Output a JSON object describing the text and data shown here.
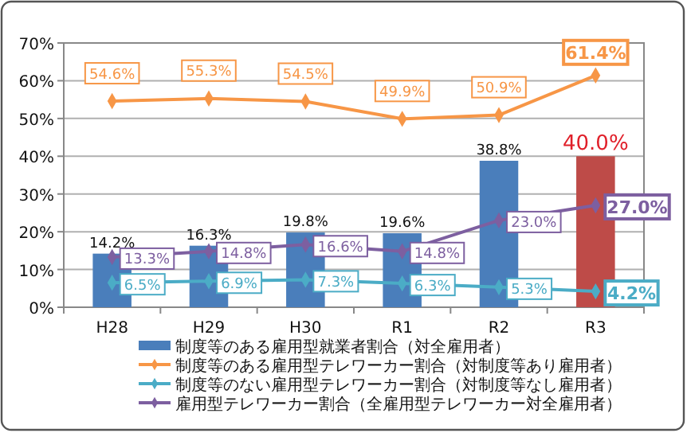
{
  "chart_data": {
    "type": "bar",
    "categories": [
      "H28",
      "H29",
      "H30",
      "R1",
      "R2",
      "R3"
    ],
    "series": [
      {
        "name": "制度等のある雇用型就業者割合（対全雇用者）",
        "color": "#4a7ebb",
        "colors": [
          "#4a7ebb",
          "#4a7ebb",
          "#4a7ebb",
          "#4a7ebb",
          "#4a7ebb",
          "#be4b48"
        ],
        "values": [
          14.2,
          16.3,
          19.8,
          19.6,
          38.8,
          40.0
        ],
        "value_labels": [
          "14.2%",
          "16.3%",
          "19.8%",
          "19.6%",
          "38.8%",
          "40.0%"
        ]
      },
      {
        "name": "制度等のある雇用型テレワーカー割合（対制度等あり雇用者）",
        "type": "line",
        "color": "#f79646",
        "values": [
          54.6,
          55.3,
          54.5,
          49.9,
          50.9,
          61.4
        ],
        "value_labels": [
          "54.6%",
          "55.3%",
          "54.5%",
          "49.9%",
          "50.9%",
          "61.4%"
        ]
      },
      {
        "name": "制度等のない雇用型テレワーカー割合（対制度等なし雇用者）",
        "type": "line",
        "color": "#4bacc6",
        "values": [
          6.5,
          6.9,
          7.3,
          6.3,
          5.3,
          4.2
        ],
        "value_labels": [
          "6.5%",
          "6.9%",
          "7.3%",
          "6.3%",
          "5.3%",
          "4.2%"
        ]
      },
      {
        "name": "雇用型テレワーカー割合（全雇用型テレワーカー対全雇用者）",
        "type": "line",
        "color": "#7d5fa0",
        "values": [
          13.3,
          14.8,
          16.6,
          14.8,
          23.0,
          27.0
        ],
        "value_labels": [
          "13.3%",
          "14.8%",
          "16.6%",
          "14.8%",
          "23.0%",
          "27.0%"
        ]
      }
    ],
    "ylim": [
      0,
      70
    ],
    "yticks": [
      {
        "value": 0,
        "label": "0%"
      },
      {
        "value": 10,
        "label": "10%"
      },
      {
        "value": 20,
        "label": "20%"
      },
      {
        "value": 30,
        "label": "30%"
      },
      {
        "value": 40,
        "label": "40%"
      },
      {
        "value": 50,
        "label": "50%"
      },
      {
        "value": 60,
        "label": "60%"
      },
      {
        "value": 70,
        "label": "70%"
      }
    ],
    "grid": "y",
    "legend": "bottom",
    "marker": "diamond",
    "line_style": "solid"
  }
}
